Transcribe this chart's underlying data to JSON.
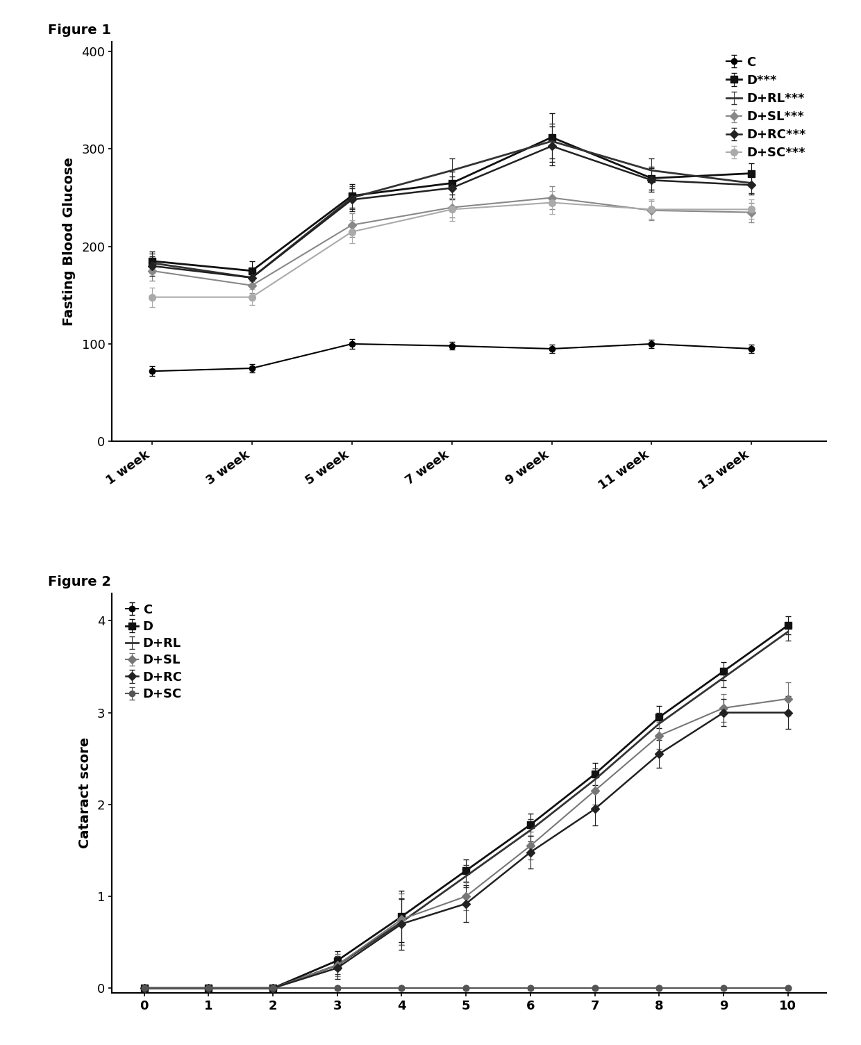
{
  "fig1": {
    "fig_label": "Figure 1",
    "ylabel": "Fasting Blood Glucose",
    "x_labels": [
      "1 week",
      "3 week",
      "5 week",
      "7 week",
      "9 week",
      "11 week",
      "13 week"
    ],
    "x_vals": [
      1,
      3,
      5,
      7,
      9,
      11,
      13
    ],
    "series_order": [
      "C",
      "D",
      "D+RL",
      "D+SL",
      "D+RC",
      "D+SC"
    ],
    "series": {
      "C": {
        "y": [
          72,
          75,
          100,
          98,
          95,
          100,
          95
        ],
        "yerr": [
          5,
          4,
          5,
          4,
          4,
          4,
          4
        ],
        "color": "#000000",
        "marker": "o",
        "markersize": 6,
        "linewidth": 1.5,
        "linestyle": "-",
        "label": "C"
      },
      "D": {
        "y": [
          185,
          175,
          252,
          265,
          312,
          270,
          275
        ],
        "yerr": [
          10,
          10,
          12,
          12,
          25,
          12,
          10
        ],
        "color": "#111111",
        "marker": "s",
        "markersize": 7,
        "linewidth": 2.0,
        "linestyle": "-",
        "label": "D***"
      },
      "D+RL": {
        "y": [
          183,
          168,
          250,
          278,
          308,
          278,
          265
        ],
        "yerr": [
          10,
          8,
          12,
          12,
          18,
          12,
          10
        ],
        "color": "#333333",
        "marker": "",
        "markersize": 0,
        "linewidth": 2.0,
        "linestyle": "-",
        "label": "D+RL***"
      },
      "D+SL": {
        "y": [
          175,
          160,
          222,
          240,
          250,
          237,
          235
        ],
        "yerr": [
          10,
          8,
          12,
          10,
          12,
          10,
          10
        ],
        "color": "#888888",
        "marker": "D",
        "markersize": 6,
        "linewidth": 1.5,
        "linestyle": "-",
        "label": "D+SL***"
      },
      "D+RC": {
        "y": [
          180,
          168,
          248,
          260,
          303,
          268,
          263
        ],
        "yerr": [
          10,
          8,
          12,
          12,
          20,
          12,
          10
        ],
        "color": "#222222",
        "marker": "D",
        "markersize": 6,
        "linewidth": 1.8,
        "linestyle": "-",
        "label": "D+RC***"
      },
      "D+SC": {
        "y": [
          148,
          148,
          215,
          238,
          245,
          238,
          238
        ],
        "yerr": [
          10,
          8,
          12,
          12,
          12,
          10,
          10
        ],
        "color": "#aaaaaa",
        "marker": "o",
        "markersize": 7,
        "linewidth": 1.5,
        "linestyle": "-",
        "label": "D+SC***"
      }
    },
    "ylim": [
      0,
      410
    ],
    "yticks": [
      0,
      100,
      200,
      300,
      400
    ]
  },
  "fig2": {
    "fig_label": "Figure 2",
    "ylabel": "Cataract score",
    "x_vals": [
      0,
      1,
      2,
      3,
      4,
      5,
      6,
      7,
      8,
      9,
      10
    ],
    "series_order": [
      "C",
      "D",
      "D+RL",
      "D+SL",
      "D+RC",
      "D+SC"
    ],
    "series": {
      "C": {
        "y": [
          0,
          0,
          0,
          0,
          0,
          0,
          0,
          0,
          0,
          0,
          0
        ],
        "yerr": [
          0,
          0,
          0,
          0,
          0,
          0,
          0,
          0,
          0,
          0,
          0
        ],
        "color": "#000000",
        "marker": "o",
        "markersize": 6,
        "linewidth": 1.5,
        "linestyle": "-",
        "label": "C"
      },
      "D": {
        "y": [
          0,
          0,
          0,
          0.3,
          0.78,
          1.28,
          1.78,
          2.33,
          2.95,
          3.45,
          3.95
        ],
        "yerr": [
          0,
          0,
          0,
          0.1,
          0.28,
          0.12,
          0.12,
          0.12,
          0.12,
          0.1,
          0.1
        ],
        "color": "#111111",
        "marker": "s",
        "markersize": 7,
        "linewidth": 2.0,
        "linestyle": "-",
        "label": "D"
      },
      "D+RL": {
        "y": [
          0,
          0,
          0,
          0.25,
          0.72,
          1.22,
          1.72,
          2.27,
          2.88,
          3.38,
          3.88
        ],
        "yerr": [
          0,
          0,
          0,
          0.1,
          0.25,
          0.12,
          0.12,
          0.12,
          0.12,
          0.1,
          0.1
        ],
        "color": "#333333",
        "marker": "",
        "markersize": 0,
        "linewidth": 2.0,
        "linestyle": "-",
        "label": "D+RL"
      },
      "D+SL": {
        "y": [
          0,
          0,
          0,
          0.25,
          0.75,
          1.0,
          1.55,
          2.15,
          2.75,
          3.05,
          3.15
        ],
        "yerr": [
          0,
          0,
          0,
          0.12,
          0.28,
          0.15,
          0.15,
          0.15,
          0.15,
          0.15,
          0.18
        ],
        "color": "#777777",
        "marker": "D",
        "markersize": 6,
        "linewidth": 1.5,
        "linestyle": "-",
        "label": "D+SL"
      },
      "D+RC": {
        "y": [
          0,
          0,
          0,
          0.22,
          0.7,
          0.92,
          1.48,
          1.95,
          2.55,
          3.0,
          3.0
        ],
        "yerr": [
          0,
          0,
          0,
          0.12,
          0.28,
          0.2,
          0.18,
          0.18,
          0.15,
          0.15,
          0.18
        ],
        "color": "#222222",
        "marker": "D",
        "markersize": 6,
        "linewidth": 1.8,
        "linestyle": "-",
        "label": "D+RC"
      },
      "D+SC": {
        "y": [
          0,
          0,
          0,
          0,
          0,
          0,
          0,
          0,
          0,
          0,
          0
        ],
        "yerr": [
          0,
          0,
          0,
          0,
          0,
          0,
          0,
          0,
          0,
          0,
          0
        ],
        "color": "#555555",
        "marker": "o",
        "markersize": 6,
        "linewidth": 1.5,
        "linestyle": "-",
        "label": "D+SC"
      }
    },
    "ylim": [
      -0.05,
      4.3
    ],
    "yticks": [
      0,
      1,
      2,
      3,
      4
    ]
  }
}
